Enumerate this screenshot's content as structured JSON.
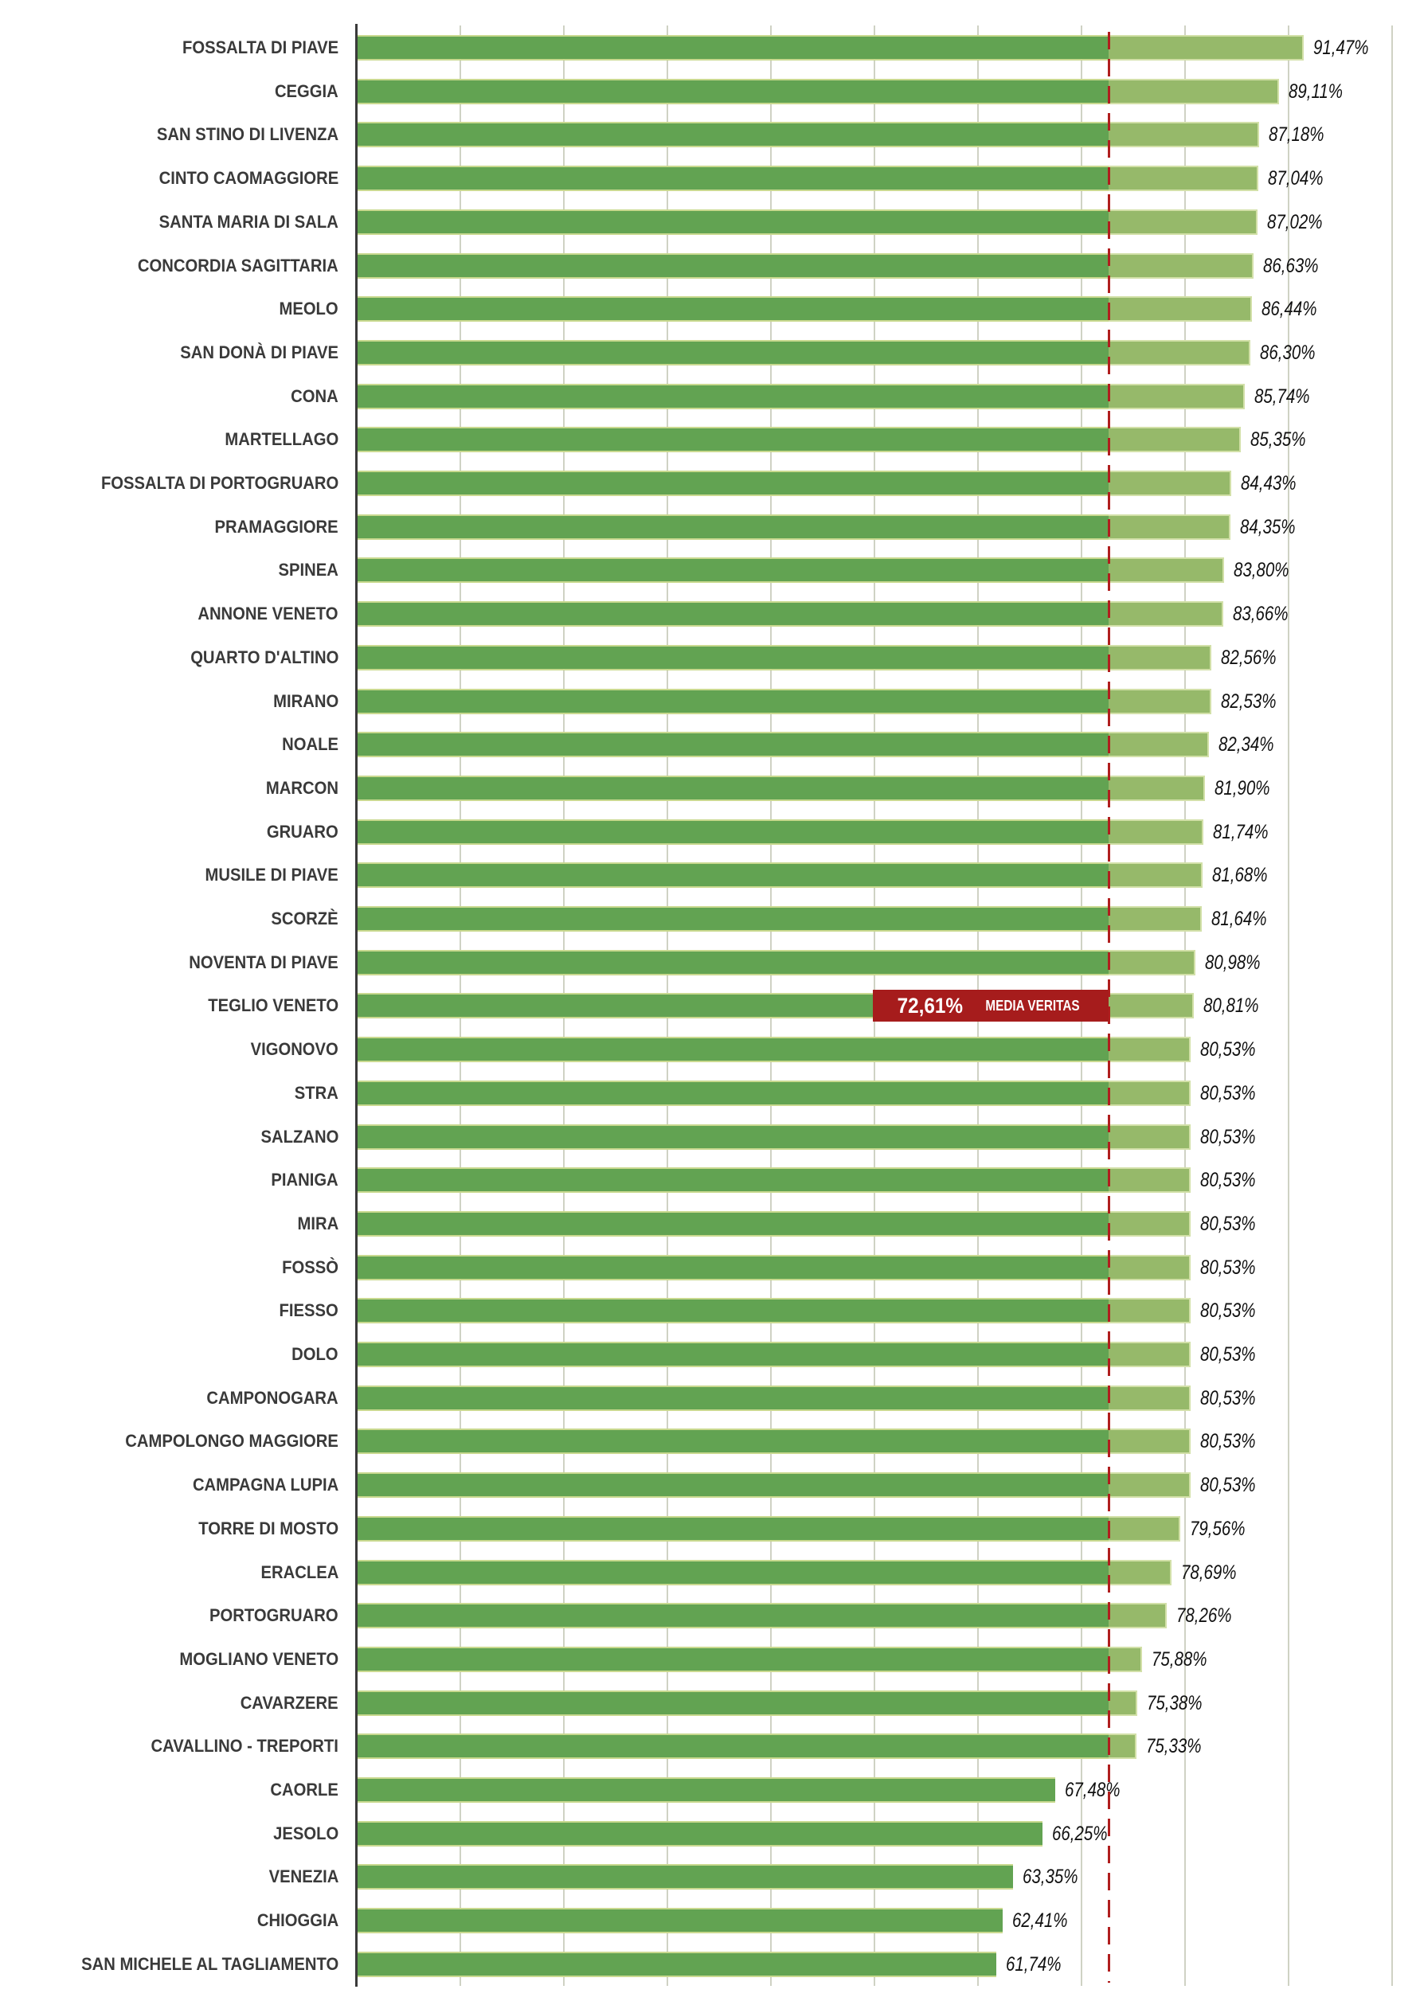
{
  "chart_data": {
    "type": "bar",
    "orientation": "horizontal",
    "xlim": [
      0,
      100
    ],
    "grid": true,
    "mean": {
      "value": 72.61,
      "value_label": "72,61%",
      "label": "MEDIA VERITAS",
      "color": "#a61c1c"
    },
    "colors": {
      "base": "#62a352",
      "above_mean": "#96b96a"
    },
    "categories": [
      "FOSSALTA DI PIAVE",
      "CEGGIA",
      "SAN STINO DI LIVENZA",
      "CINTO CAOMAGGIORE",
      "SANTA MARIA DI SALA",
      "CONCORDIA SAGITTARIA",
      "MEOLO",
      "SAN DONÀ DI PIAVE",
      "CONA",
      "MARTELLAGO",
      "FOSSALTA DI PORTOGRUARO",
      "PRAMAGGIORE",
      "SPINEA",
      "ANNONE VENETO",
      "QUARTO D'ALTINO",
      "MIRANO",
      "NOALE",
      "MARCON",
      "GRUARO",
      "MUSILE DI PIAVE",
      "SCORZÈ",
      "NOVENTA DI PIAVE",
      "TEGLIO VENETO",
      "VIGONOVO",
      "STRA",
      "SALZANO",
      "PIANIGA",
      "MIRA",
      "FOSSÒ",
      "FIESSO",
      "DOLO",
      "CAMPONOGARA",
      "CAMPOLONGO MAGGIORE",
      "CAMPAGNA LUPIA",
      "TORRE DI MOSTO",
      "ERACLEA",
      "PORTOGRUARO",
      "MOGLIANO VENETO",
      "CAVARZERE",
      "CAVALLINO - TREPORTI",
      "CAORLE",
      "JESOLO",
      "VENEZIA",
      "CHIOGGIA",
      "SAN MICHELE AL TAGLIAMENTO"
    ],
    "values": [
      91.47,
      89.11,
      87.18,
      87.04,
      87.02,
      86.63,
      86.44,
      86.3,
      85.74,
      85.35,
      84.43,
      84.35,
      83.8,
      83.66,
      82.56,
      82.53,
      82.34,
      81.9,
      81.74,
      81.68,
      81.64,
      80.98,
      80.81,
      80.53,
      80.53,
      80.53,
      80.53,
      80.53,
      80.53,
      80.53,
      80.53,
      80.53,
      80.53,
      80.53,
      79.56,
      78.69,
      78.26,
      75.88,
      75.38,
      75.33,
      67.48,
      66.25,
      63.35,
      62.41,
      61.74
    ],
    "value_labels": [
      "91,47%",
      "89,11%",
      "87,18%",
      "87,04%",
      "87,02%",
      "86,63%",
      "86,44%",
      "86,30%",
      "85,74%",
      "85,35%",
      "84,43%",
      "84,35%",
      "83,80%",
      "83,66%",
      "82,56%",
      "82,53%",
      "82,34%",
      "81,90%",
      "81,74%",
      "81,68%",
      "81,64%",
      "80,98%",
      "80,81%",
      "80,53%",
      "80,53%",
      "80,53%",
      "80,53%",
      "80,53%",
      "80,53%",
      "80,53%",
      "80,53%",
      "80,53%",
      "80,53%",
      "80,53%",
      "79,56%",
      "78,69%",
      "78,26%",
      "75,88%",
      "75,38%",
      "75,33%",
      "67,48%",
      "66,25%",
      "63,35%",
      "62,41%",
      "61,74%"
    ]
  }
}
